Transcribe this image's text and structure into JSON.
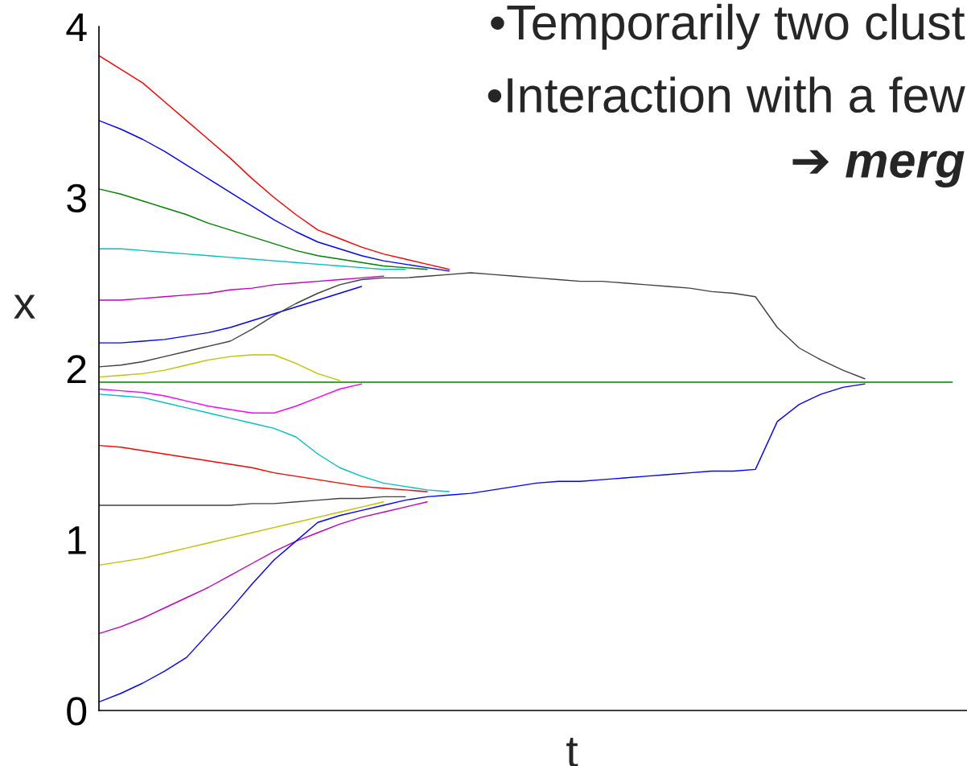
{
  "chart_data": {
    "type": "line",
    "xlabel": "t",
    "ylabel": "x",
    "annotations": [
      "•Temporarily two clust",
      "•Interaction with a few",
      "➔ merg"
    ],
    "categories": [
      null,
      null,
      null,
      null,
      null,
      null,
      null,
      null,
      null,
      null,
      null,
      null,
      null,
      null,
      null,
      null,
      null,
      null,
      null,
      null,
      null,
      null,
      null,
      null,
      null,
      null,
      null,
      null,
      null,
      null,
      null,
      null,
      null,
      null,
      null,
      null,
      null,
      null,
      null,
      null
    ],
    "ylim": [
      0,
      4
    ],
    "yticks": [
      0,
      1,
      2,
      3,
      4
    ],
    "tick_labels": "y",
    "grid": false,
    "series": [
      {
        "color": "#ff0000",
        "values": [
          3.83,
          3.75,
          3.67,
          3.56,
          3.45,
          3.34,
          3.23,
          3.11,
          3.0,
          2.9,
          2.81,
          2.76,
          2.71,
          2.67,
          2.64,
          2.61,
          2.58,
          null,
          null,
          null,
          null,
          null,
          null,
          null,
          null,
          null,
          null,
          null,
          null,
          null,
          null,
          null,
          null,
          null,
          null,
          null,
          null,
          null,
          null,
          null
        ]
      },
      {
        "color": "#0000ff",
        "values": [
          3.45,
          3.4,
          3.34,
          3.27,
          3.19,
          3.11,
          3.03,
          2.95,
          2.87,
          2.8,
          2.74,
          2.7,
          2.66,
          2.63,
          2.61,
          2.59,
          2.57,
          null,
          null,
          null,
          null,
          null,
          null,
          null,
          null,
          null,
          null,
          null,
          null,
          null,
          null,
          null,
          null,
          null,
          null,
          null,
          null,
          null,
          null,
          null
        ]
      },
      {
        "color": "#008000",
        "values": [
          3.05,
          3.02,
          2.98,
          2.94,
          2.9,
          2.85,
          2.81,
          2.77,
          2.73,
          2.69,
          2.66,
          2.64,
          2.62,
          2.6,
          2.59,
          2.58,
          null,
          null,
          null,
          null,
          null,
          null,
          null,
          null,
          null,
          null,
          null,
          null,
          null,
          null,
          null,
          null,
          null,
          null,
          null,
          null,
          null,
          null,
          null,
          null
        ]
      },
      {
        "color": "#00bfbf",
        "values": [
          2.7,
          2.7,
          2.69,
          2.68,
          2.67,
          2.66,
          2.65,
          2.64,
          2.63,
          2.62,
          2.61,
          2.6,
          2.59,
          2.58,
          2.58,
          null,
          null,
          null,
          null,
          null,
          null,
          null,
          null,
          null,
          null,
          null,
          null,
          null,
          null,
          null,
          null,
          null,
          null,
          null,
          null,
          null,
          null,
          null,
          null,
          null
        ]
      },
      {
        "color": "#bf00bf",
        "values": [
          2.4,
          2.4,
          2.41,
          2.42,
          2.43,
          2.44,
          2.46,
          2.47,
          2.49,
          2.5,
          2.51,
          2.52,
          2.53,
          2.54,
          null,
          null,
          null,
          null,
          null,
          null,
          null,
          null,
          null,
          null,
          null,
          null,
          null,
          null,
          null,
          null,
          null,
          null,
          null,
          null,
          null,
          null,
          null,
          null,
          null,
          null
        ]
      },
      {
        "color": "#0000ff",
        "values": [
          2.15,
          2.15,
          2.16,
          2.17,
          2.19,
          2.21,
          2.24,
          2.28,
          2.32,
          2.36,
          2.4,
          2.44,
          2.48,
          null,
          null,
          null,
          null,
          null,
          null,
          null,
          null,
          null,
          null,
          null,
          null,
          null,
          null,
          null,
          null,
          null,
          null,
          null,
          null,
          null,
          null,
          null,
          null,
          null,
          null,
          null
        ]
      },
      {
        "color": "#404040",
        "values": [
          2.01,
          2.02,
          2.04,
          2.07,
          2.1,
          2.13,
          2.16,
          2.23,
          2.31,
          2.38,
          2.44,
          2.49,
          2.52,
          2.53,
          2.53,
          2.54,
          2.55,
          2.56,
          2.55,
          2.54,
          2.53,
          2.52,
          2.51,
          2.51,
          2.5,
          2.49,
          2.48,
          2.47,
          2.45,
          2.44,
          2.42,
          2.24,
          2.12,
          2.05,
          1.99,
          1.94,
          null,
          null,
          null,
          null
        ]
      },
      {
        "color": "#bfbf00",
        "values": [
          1.95,
          1.96,
          1.97,
          1.99,
          2.02,
          2.05,
          2.07,
          2.08,
          2.08,
          2.03,
          1.97,
          1.93,
          null,
          null,
          null,
          null,
          null,
          null,
          null,
          null,
          null,
          null,
          null,
          null,
          null,
          null,
          null,
          null,
          null,
          null,
          null,
          null,
          null,
          null,
          null,
          null,
          null,
          null,
          null,
          null
        ]
      },
      {
        "color": "#008000",
        "values": [
          1.92,
          1.92,
          1.92,
          1.92,
          1.92,
          1.92,
          1.92,
          1.92,
          1.92,
          1.92,
          1.92,
          1.92,
          1.92,
          1.92,
          1.92,
          1.92,
          1.92,
          1.92,
          1.92,
          1.92,
          1.92,
          1.92,
          1.92,
          1.92,
          1.92,
          1.92,
          1.92,
          1.92,
          1.92,
          1.92,
          1.92,
          1.92,
          1.92,
          1.92,
          1.92,
          1.92,
          1.92,
          1.92,
          1.92,
          1.92
        ]
      },
      {
        "color": "#ff00ff",
        "values": [
          1.88,
          1.87,
          1.86,
          1.84,
          1.81,
          1.78,
          1.76,
          1.74,
          1.74,
          1.78,
          1.83,
          1.88,
          1.91,
          null,
          null,
          null,
          null,
          null,
          null,
          null,
          null,
          null,
          null,
          null,
          null,
          null,
          null,
          null,
          null,
          null,
          null,
          null,
          null,
          null,
          null,
          null,
          null,
          null,
          null,
          null
        ]
      },
      {
        "color": "#00bfbf",
        "values": [
          1.85,
          1.84,
          1.83,
          1.8,
          1.77,
          1.74,
          1.71,
          1.68,
          1.65,
          1.6,
          1.5,
          1.42,
          1.37,
          1.33,
          1.31,
          1.29,
          1.28,
          null,
          null,
          null,
          null,
          null,
          null,
          null,
          null,
          null,
          null,
          null,
          null,
          null,
          null,
          null,
          null,
          null,
          null,
          null,
          null,
          null,
          null,
          null
        ]
      },
      {
        "color": "#ff0000",
        "values": [
          1.55,
          1.54,
          1.52,
          1.5,
          1.48,
          1.46,
          1.44,
          1.42,
          1.39,
          1.37,
          1.35,
          1.33,
          1.31,
          1.3,
          1.29,
          1.28,
          null,
          null,
          null,
          null,
          null,
          null,
          null,
          null,
          null,
          null,
          null,
          null,
          null,
          null,
          null,
          null,
          null,
          null,
          null,
          null,
          null,
          null,
          null,
          null
        ]
      },
      {
        "color": "#404040",
        "values": [
          1.2,
          1.2,
          1.2,
          1.2,
          1.2,
          1.2,
          1.2,
          1.21,
          1.21,
          1.22,
          1.23,
          1.24,
          1.24,
          1.25,
          1.25,
          null,
          null,
          null,
          null,
          null,
          null,
          null,
          null,
          null,
          null,
          null,
          null,
          null,
          null,
          null,
          null,
          null,
          null,
          null,
          null,
          null,
          null,
          null,
          null,
          null
        ]
      },
      {
        "color": "#bfbf00",
        "values": [
          0.85,
          0.87,
          0.89,
          0.92,
          0.95,
          0.98,
          1.01,
          1.04,
          1.07,
          1.1,
          1.13,
          1.16,
          1.19,
          1.22,
          null,
          null,
          null,
          null,
          null,
          null,
          null,
          null,
          null,
          null,
          null,
          null,
          null,
          null,
          null,
          null,
          null,
          null,
          null,
          null,
          null,
          null,
          null,
          null,
          null,
          null
        ]
      },
      {
        "color": "#bf00bf",
        "values": [
          0.45,
          0.49,
          0.54,
          0.6,
          0.66,
          0.72,
          0.79,
          0.86,
          0.93,
          0.99,
          1.04,
          1.09,
          1.13,
          1.16,
          1.19,
          1.22,
          null,
          null,
          null,
          null,
          null,
          null,
          null,
          null,
          null,
          null,
          null,
          null,
          null,
          null,
          null,
          null,
          null,
          null,
          null,
          null,
          null,
          null,
          null,
          null
        ]
      },
      {
        "color": "#0000ff",
        "values": [
          0.05,
          0.1,
          0.16,
          0.23,
          0.31,
          0.45,
          0.59,
          0.74,
          0.88,
          0.99,
          1.1,
          1.14,
          1.17,
          1.2,
          1.23,
          1.25,
          1.26,
          1.27,
          1.29,
          1.31,
          1.33,
          1.34,
          1.34,
          1.35,
          1.36,
          1.37,
          1.38,
          1.39,
          1.4,
          1.4,
          1.41,
          1.69,
          1.79,
          1.85,
          1.89,
          1.91,
          null,
          null,
          null,
          null
        ]
      }
    ]
  }
}
